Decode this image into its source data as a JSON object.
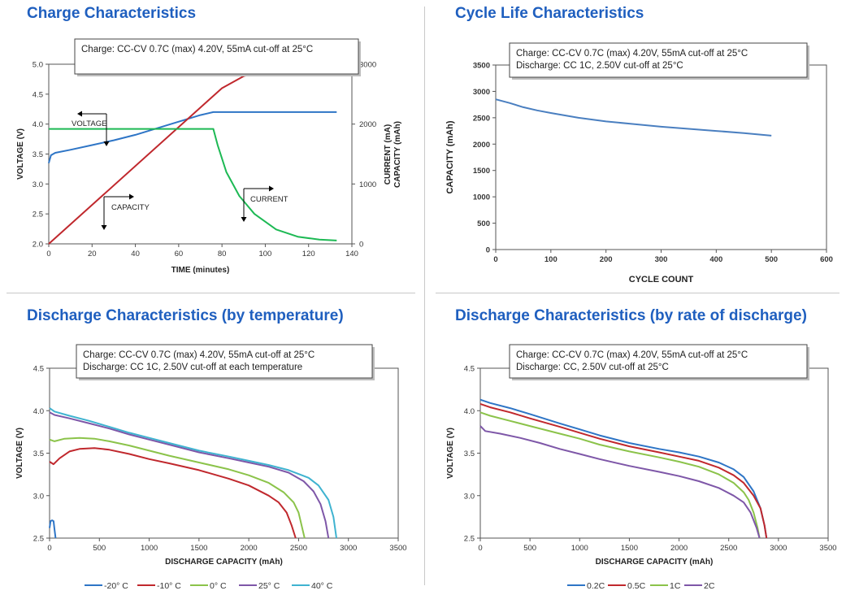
{
  "chart_data": [
    {
      "type": "line",
      "title": "Charge Characteristics",
      "annotation_box": [
        "Charge:   CC-CV 0.7C (max) 4.20V, 55mA cut-off at 25°C"
      ],
      "xlabel": "TIME (minutes)",
      "ylabel": "VOLTAGE (V)",
      "y2label_lines": [
        "CURRENT (mA)",
        "CAPACITY (mAh)"
      ],
      "xlim": [
        0,
        140
      ],
      "ylim": [
        2.0,
        5.0
      ],
      "y2lim": [
        0,
        3000
      ],
      "xticks": [
        "0",
        "20",
        "40",
        "60",
        "80",
        "100",
        "120",
        "140"
      ],
      "yticks": [
        "2.0",
        "2.5",
        "3.0",
        "3.5",
        "4.0",
        "4.5",
        "5.0"
      ],
      "y2ticks": [
        "0",
        "1000",
        "2000",
        "3000"
      ],
      "labels": [
        "VOLTAGE",
        "CAPACITY",
        "CURRENT"
      ],
      "series": [
        {
          "key": "voltage",
          "axis": "left",
          "color": "#2e75c6",
          "x": [
            0,
            1,
            3,
            10,
            20,
            30,
            40,
            50,
            60,
            70,
            76,
            80,
            100,
            120,
            133
          ],
          "y": [
            3.35,
            3.48,
            3.52,
            3.57,
            3.65,
            3.73,
            3.82,
            3.93,
            4.04,
            4.15,
            4.2,
            4.2,
            4.2,
            4.2,
            4.2
          ]
        },
        {
          "key": "capacity",
          "axis": "right",
          "color": "#c0282d",
          "x": [
            0,
            76,
            80,
            90,
            100,
            110,
            120,
            133
          ],
          "y": [
            0,
            2470,
            2600,
            2800,
            2890,
            2940,
            2965,
            2985
          ]
        },
        {
          "key": "current",
          "axis": "right",
          "color": "#1db954",
          "x": [
            0,
            76,
            78,
            82,
            88,
            95,
            105,
            115,
            125,
            133
          ],
          "y": [
            1920,
            1920,
            1650,
            1200,
            800,
            500,
            240,
            120,
            70,
            55
          ]
        }
      ]
    },
    {
      "type": "line",
      "title": "Cycle Life Characteristics",
      "annotation_box": [
        "Charge:      CC-CV 0.7C (max) 4.20V, 55mA cut-off at 25°C",
        "Discharge: CC 1C, 2.50V cut-off at 25°C"
      ],
      "xlabel": "CYCLE COUNT",
      "ylabel": "CAPACITY (mAh)",
      "xlim": [
        0,
        600
      ],
      "ylim": [
        0,
        3500
      ],
      "xticks": [
        "0",
        "100",
        "200",
        "300",
        "400",
        "500",
        "600"
      ],
      "yticks": [
        "0",
        "500",
        "1000",
        "1500",
        "2000",
        "2500",
        "3000",
        "3500"
      ],
      "series": [
        {
          "key": "capacity",
          "color": "#4a7fc0",
          "x": [
            0,
            25,
            50,
            75,
            100,
            150,
            200,
            250,
            300,
            350,
            400,
            450,
            500
          ],
          "y": [
            2850,
            2780,
            2700,
            2640,
            2590,
            2500,
            2430,
            2380,
            2330,
            2290,
            2250,
            2210,
            2160
          ]
        }
      ]
    },
    {
      "type": "line",
      "title": "Discharge Characteristics (by temperature)",
      "annotation_box": [
        "Charge:      CC-CV 0.7C (max) 4.20V, 55mA cut-off at 25°C",
        "Discharge: CC 1C, 2.50V cut-off at each temperature"
      ],
      "xlabel": "DISCHARGE CAPACITY (mAh)",
      "ylabel": "VOLTAGE (V)",
      "xlim": [
        0,
        3500
      ],
      "ylim": [
        2.5,
        4.5
      ],
      "xticks": [
        "0",
        "500",
        "1000",
        "1500",
        "2000",
        "2500",
        "3000",
        "3500"
      ],
      "yticks": [
        "2.5",
        "3.0",
        "3.5",
        "4.0",
        "4.5"
      ],
      "series": [
        {
          "name": "-20° C",
          "color": "#2e75c6",
          "x": [
            0,
            10,
            25,
            40,
            50,
            60
          ],
          "y": [
            2.62,
            2.7,
            2.71,
            2.7,
            2.6,
            2.5
          ]
        },
        {
          "name": "-10° C",
          "color": "#c0282d",
          "x": [
            0,
            40,
            100,
            200,
            300,
            450,
            600,
            800,
            1000,
            1200,
            1500,
            1800,
            2000,
            2200,
            2300,
            2380,
            2430,
            2470
          ],
          "y": [
            3.4,
            3.37,
            3.44,
            3.52,
            3.55,
            3.56,
            3.54,
            3.49,
            3.43,
            3.38,
            3.3,
            3.2,
            3.12,
            3.0,
            2.92,
            2.8,
            2.65,
            2.5
          ]
        },
        {
          "name": "0° C",
          "color": "#8bc34a",
          "x": [
            0,
            50,
            150,
            300,
            450,
            600,
            800,
            1000,
            1200,
            1500,
            1800,
            2000,
            2200,
            2350,
            2450,
            2500,
            2530,
            2560
          ],
          "y": [
            3.66,
            3.64,
            3.67,
            3.68,
            3.67,
            3.64,
            3.59,
            3.53,
            3.47,
            3.39,
            3.31,
            3.24,
            3.15,
            3.04,
            2.92,
            2.8,
            2.65,
            2.5
          ]
        },
        {
          "name": "25° C",
          "color": "#7e57a8",
          "x": [
            0,
            50,
            200,
            400,
            600,
            800,
            1000,
            1200,
            1500,
            1800,
            2000,
            2200,
            2400,
            2550,
            2650,
            2720,
            2770,
            2800
          ],
          "y": [
            3.98,
            3.95,
            3.91,
            3.85,
            3.79,
            3.72,
            3.66,
            3.6,
            3.51,
            3.44,
            3.39,
            3.34,
            3.27,
            3.17,
            3.05,
            2.9,
            2.7,
            2.5
          ]
        },
        {
          "name": "40° C",
          "color": "#3fb3d0",
          "x": [
            0,
            50,
            200,
            400,
            600,
            800,
            1000,
            1200,
            1500,
            1800,
            2000,
            2200,
            2400,
            2600,
            2700,
            2800,
            2850,
            2880
          ],
          "y": [
            4.03,
            3.99,
            3.94,
            3.88,
            3.81,
            3.74,
            3.68,
            3.62,
            3.53,
            3.46,
            3.41,
            3.36,
            3.3,
            3.21,
            3.12,
            2.95,
            2.75,
            2.5
          ]
        }
      ]
    },
    {
      "type": "line",
      "title": "Discharge Characteristics (by rate of discharge)",
      "annotation_box": [
        "Charge:      CC-CV 0.7C (max) 4.20V, 55mA cut-off at 25°C",
        "Discharge: CC, 2.50V cut-off at 25°C"
      ],
      "xlabel": "DISCHARGE CAPACITY (mAh)",
      "ylabel": "VOLTAGE (V)",
      "xlim": [
        0,
        3500
      ],
      "ylim": [
        2.5,
        4.5
      ],
      "xticks": [
        "0",
        "500",
        "1000",
        "1500",
        "2000",
        "2500",
        "3000",
        "3500"
      ],
      "yticks": [
        "2.5",
        "3.0",
        "3.5",
        "4.0",
        "4.5"
      ],
      "series": [
        {
          "name": "0.2C",
          "color": "#2e75c6",
          "x": [
            0,
            100,
            300,
            500,
            800,
            1000,
            1200,
            1500,
            1800,
            2000,
            2200,
            2400,
            2550,
            2650,
            2750,
            2820,
            2860,
            2880
          ],
          "y": [
            4.13,
            4.09,
            4.03,
            3.96,
            3.85,
            3.78,
            3.71,
            3.62,
            3.55,
            3.51,
            3.46,
            3.39,
            3.31,
            3.22,
            3.05,
            2.85,
            2.65,
            2.5
          ]
        },
        {
          "name": "0.5C",
          "color": "#c0282d",
          "x": [
            0,
            100,
            300,
            500,
            800,
            1000,
            1200,
            1500,
            1800,
            2000,
            2200,
            2400,
            2550,
            2650,
            2750,
            2820,
            2860,
            2880
          ],
          "y": [
            4.08,
            4.04,
            3.98,
            3.91,
            3.81,
            3.74,
            3.67,
            3.58,
            3.51,
            3.46,
            3.41,
            3.33,
            3.24,
            3.15,
            3.0,
            2.85,
            2.65,
            2.5
          ]
        },
        {
          "name": "1C",
          "color": "#8bc34a",
          "x": [
            0,
            100,
            300,
            500,
            800,
            1000,
            1200,
            1500,
            1800,
            2000,
            2200,
            2400,
            2550,
            2650,
            2700,
            2750,
            2790,
            2810
          ],
          "y": [
            3.98,
            3.94,
            3.88,
            3.82,
            3.73,
            3.67,
            3.6,
            3.52,
            3.45,
            3.4,
            3.34,
            3.25,
            3.15,
            3.04,
            2.95,
            2.8,
            2.62,
            2.5
          ]
        },
        {
          "name": "2C",
          "color": "#7e57a8",
          "x": [
            0,
            50,
            200,
            400,
            600,
            800,
            1000,
            1200,
            1500,
            1800,
            2000,
            2200,
            2400,
            2550,
            2650,
            2720,
            2780,
            2810
          ],
          "y": [
            3.82,
            3.76,
            3.73,
            3.68,
            3.62,
            3.55,
            3.49,
            3.43,
            3.35,
            3.28,
            3.23,
            3.17,
            3.09,
            3.0,
            2.92,
            2.8,
            2.62,
            2.5
          ]
        }
      ]
    }
  ]
}
